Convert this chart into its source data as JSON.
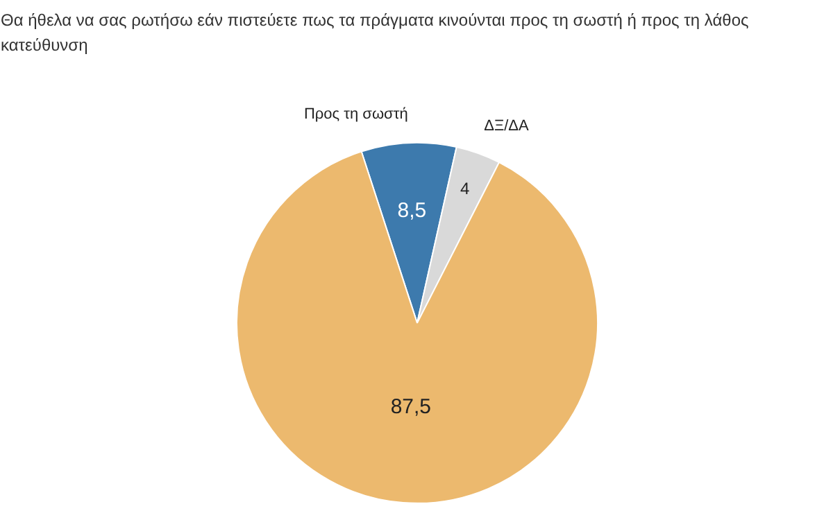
{
  "chart_data": {
    "type": "pie",
    "title": "Θα ήθελα να σας ρωτήσω εάν πιστεύετε πως τα πράγματα κινούνται προς τη σωστή ή προς τη λάθος κατεύθυνση",
    "categories": [
      "Προς τη σωστή",
      "ΔΞ/ΔΑ",
      null
    ],
    "values": [
      8.5,
      4,
      87.5
    ],
    "value_labels": [
      "8,5",
      "4",
      "87,5"
    ],
    "colors": [
      "#3d7aad",
      "#d9d9d9",
      "#ecb96e"
    ]
  }
}
